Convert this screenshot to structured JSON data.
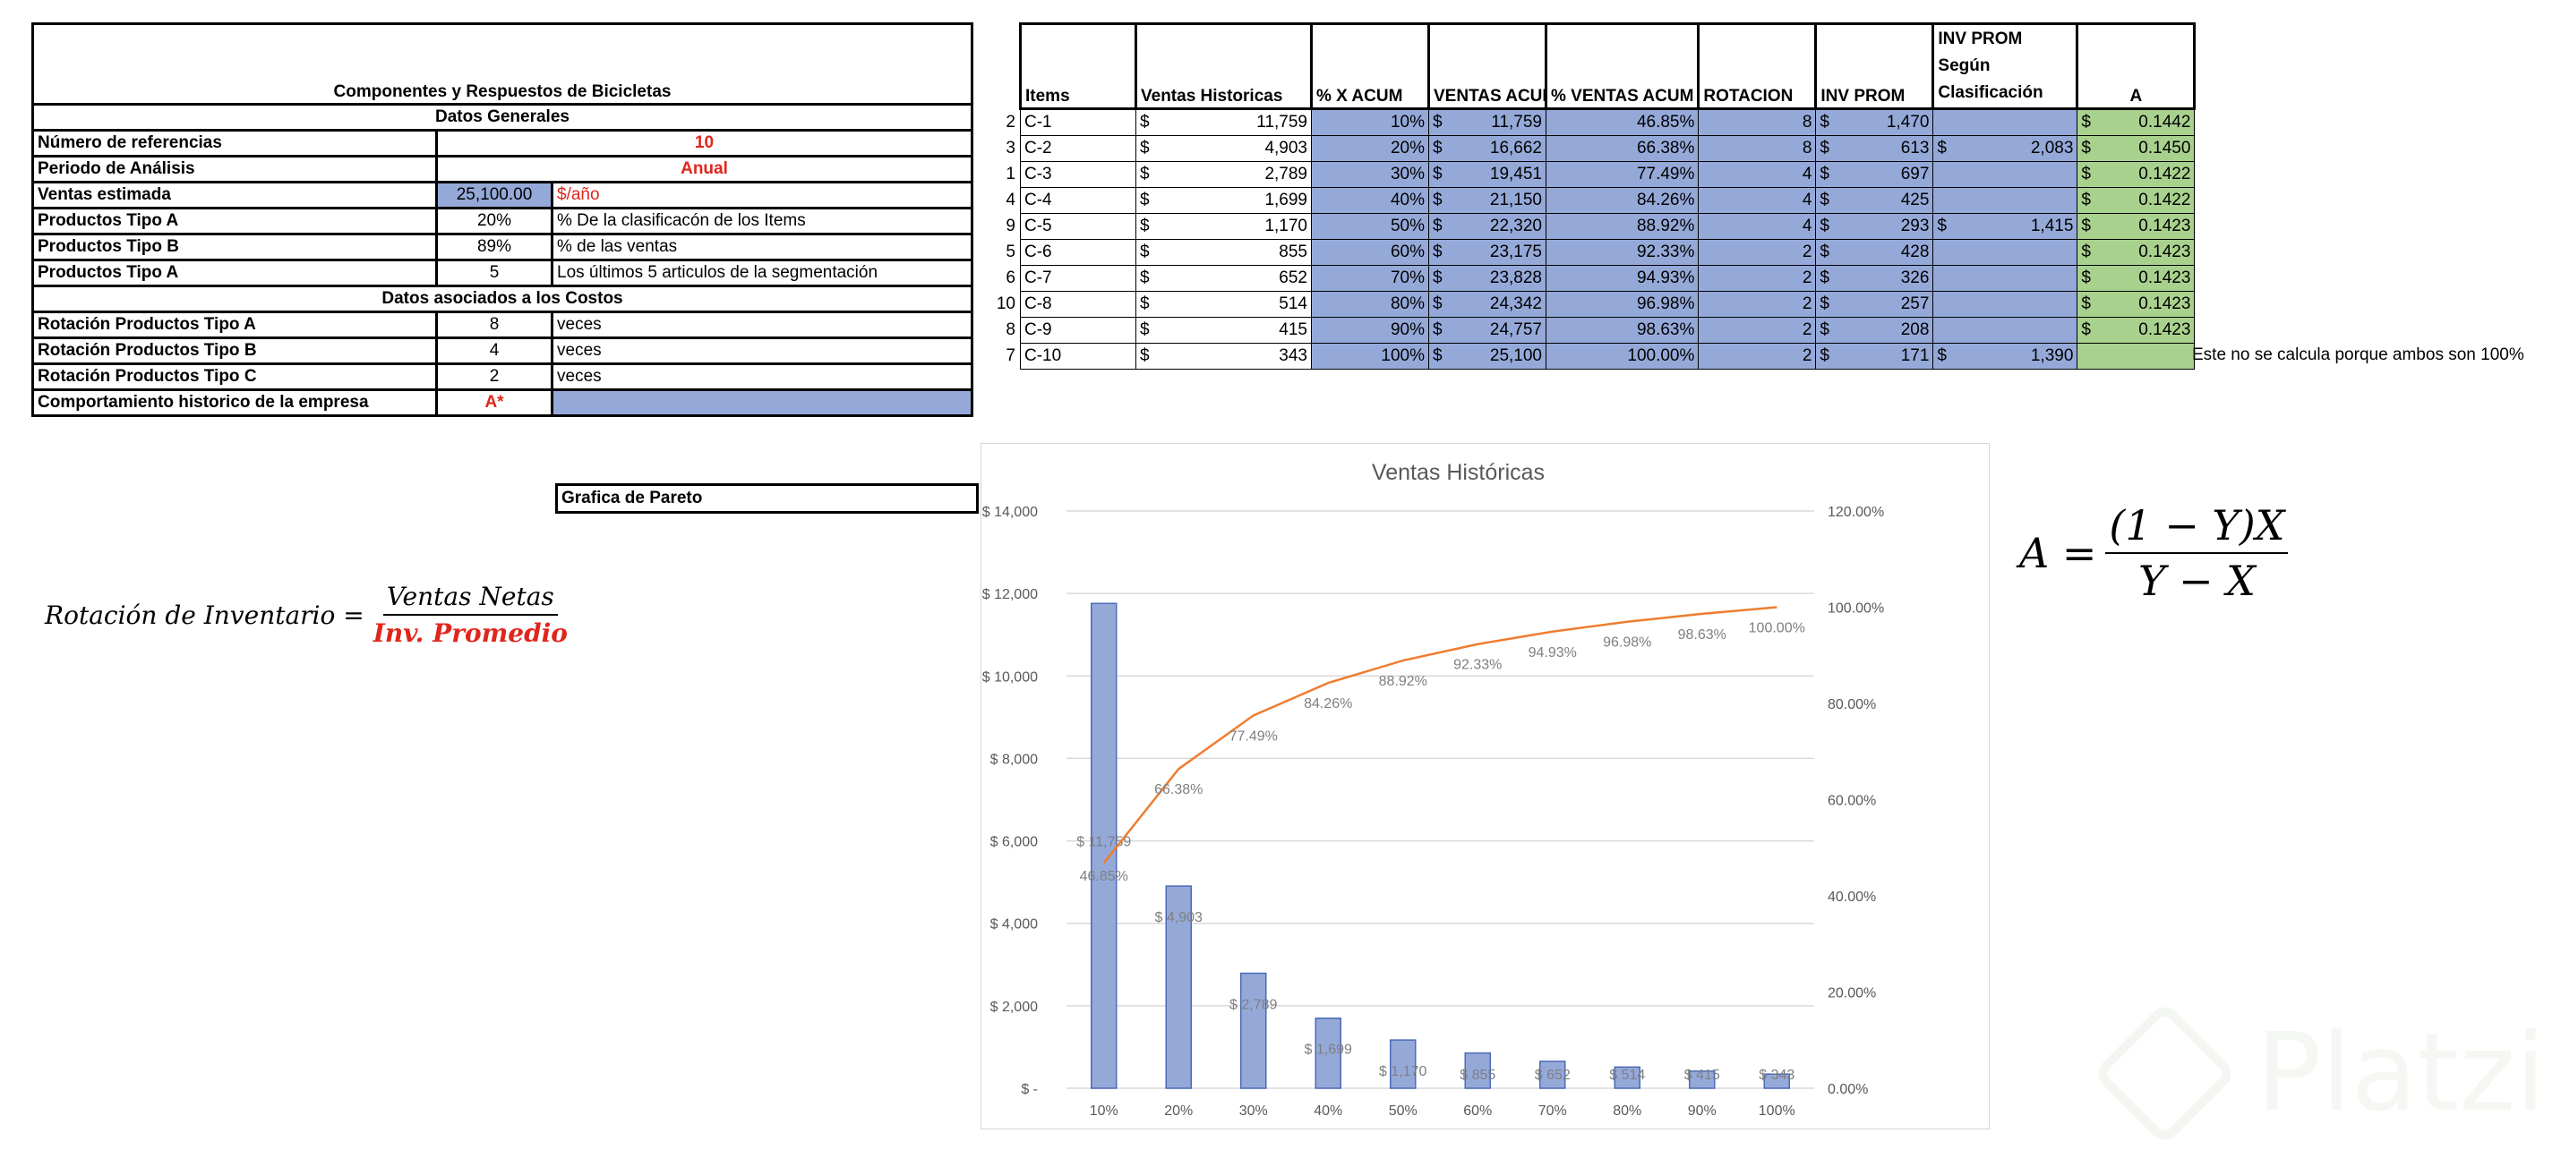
{
  "left": {
    "title": "Componentes y Respuestos de Bicicletas",
    "general_header": "Datos Generales",
    "rows": [
      {
        "label": "Número de referencias",
        "value": "10",
        "unit": ""
      },
      {
        "label": "Periodo de Análisis",
        "value": "Anual",
        "unit": ""
      },
      {
        "label": "Ventas estimada",
        "value": "25,100.00",
        "unit": "$/año"
      },
      {
        "label": "Productos Tipo A",
        "value": "20%",
        "unit": "% De la clasificacón de los Items"
      },
      {
        "label": "Productos Tipo B",
        "value": "89%",
        "unit": "% de las ventas"
      },
      {
        "label": "Productos Tipo A",
        "value": "5",
        "unit": "Los últimos 5 articulos de la segmentación"
      }
    ],
    "costs_header": "Datos asociados a los Costos",
    "cost_rows": [
      {
        "label": "Rotación Productos Tipo A",
        "value": "8",
        "unit": "veces"
      },
      {
        "label": "Rotación Productos Tipo B",
        "value": "4",
        "unit": "veces"
      },
      {
        "label": "Rotación Productos Tipo C",
        "value": "2",
        "unit": "veces"
      }
    ],
    "history": {
      "label": "Comportamiento historico de la empresa",
      "value": "A*"
    }
  },
  "table": {
    "headers": [
      "Items",
      "Ventas Historicas",
      "% X ACUM",
      "VENTAS ACUM",
      "% VENTAS ACUM",
      "ROTACION",
      "INV PROM",
      "INV PROM Según Clasificación",
      "A"
    ],
    "rows": [
      {
        "n": "2",
        "item": "C-1",
        "ventas": "11,759",
        "x": "10%",
        "acum": "11,759",
        "pct": "46.85%",
        "rot": "8",
        "inv": "1,470",
        "clas": "",
        "a": "0.1442"
      },
      {
        "n": "3",
        "item": "C-2",
        "ventas": "4,903",
        "x": "20%",
        "acum": "16,662",
        "pct": "66.38%",
        "rot": "8",
        "inv": "613",
        "clas": "2,083",
        "a": "0.1450"
      },
      {
        "n": "1",
        "item": "C-3",
        "ventas": "2,789",
        "x": "30%",
        "acum": "19,451",
        "pct": "77.49%",
        "rot": "4",
        "inv": "697",
        "clas": "",
        "a": "0.1422"
      },
      {
        "n": "4",
        "item": "C-4",
        "ventas": "1,699",
        "x": "40%",
        "acum": "21,150",
        "pct": "84.26%",
        "rot": "4",
        "inv": "425",
        "clas": "",
        "a": "0.1422"
      },
      {
        "n": "9",
        "item": "C-5",
        "ventas": "1,170",
        "x": "50%",
        "acum": "22,320",
        "pct": "88.92%",
        "rot": "4",
        "inv": "293",
        "clas": "1,415",
        "a": "0.1423"
      },
      {
        "n": "5",
        "item": "C-6",
        "ventas": "855",
        "x": "60%",
        "acum": "23,175",
        "pct": "92.33%",
        "rot": "2",
        "inv": "428",
        "clas": "",
        "a": "0.1423"
      },
      {
        "n": "6",
        "item": "C-7",
        "ventas": "652",
        "x": "70%",
        "acum": "23,828",
        "pct": "94.93%",
        "rot": "2",
        "inv": "326",
        "clas": "",
        "a": "0.1423"
      },
      {
        "n": "10",
        "item": "C-8",
        "ventas": "514",
        "x": "80%",
        "acum": "24,342",
        "pct": "96.98%",
        "rot": "2",
        "inv": "257",
        "clas": "",
        "a": "0.1423"
      },
      {
        "n": "8",
        "item": "C-9",
        "ventas": "415",
        "x": "90%",
        "acum": "24,757",
        "pct": "98.63%",
        "rot": "2",
        "inv": "208",
        "clas": "",
        "a": "0.1423"
      },
      {
        "n": "7",
        "item": "C-10",
        "ventas": "343",
        "x": "100%",
        "acum": "25,100",
        "pct": "100.00%",
        "rot": "2",
        "inv": "171",
        "clas": "1,390",
        "a": ""
      }
    ],
    "currency": "$",
    "note": "Este no se calcula porque ambos son 100%"
  },
  "pareto_label": "Grafica de Pareto",
  "formula_rotation": {
    "lhs": "Rotación de Inventario =",
    "num": "Ventas Netas",
    "den": "Inv. Promedio"
  },
  "formula_a": {
    "lhs": "A =",
    "num": "(1 − Y)X",
    "den": "Y − X"
  },
  "watermark": "Platzi",
  "colors": {
    "bar": "#95a9d9",
    "line": "#ed7d31",
    "red": "#e0261c",
    "green": "#a9d18e"
  },
  "chart_data": {
    "type": "bar",
    "title": "Ventas Históricas",
    "categories": [
      "10%",
      "20%",
      "30%",
      "40%",
      "50%",
      "60%",
      "70%",
      "80%",
      "90%",
      "100%"
    ],
    "series": [
      {
        "name": "Ventas Historicas",
        "type": "bar",
        "axis": "left",
        "values": [
          11759,
          4903,
          2789,
          1699,
          1170,
          855,
          652,
          514,
          415,
          343
        ],
        "labels": [
          "$ 11,759",
          "$ 4,903",
          "$ 2,789",
          "$ 1,699",
          "$ 1,170",
          "$ 855",
          "$ 652",
          "$ 514",
          "$ 415",
          "$ 343"
        ]
      },
      {
        "name": "% VENTAS ACUM",
        "type": "line",
        "axis": "right",
        "values": [
          46.85,
          66.38,
          77.49,
          84.26,
          88.92,
          92.33,
          94.93,
          96.98,
          98.63,
          100.0
        ],
        "labels": [
          "46.85%",
          "66.38%",
          "77.49%",
          "84.26%",
          "88.92%",
          "92.33%",
          "94.93%",
          "96.98%",
          "98.63%",
          "100.00%"
        ]
      }
    ],
    "ylim": [
      0,
      14000
    ],
    "yticks": [
      "$ -",
      "$ 2,000",
      "$ 4,000",
      "$ 6,000",
      "$ 8,000",
      "$ 10,000",
      "$ 12,000",
      "$ 14,000"
    ],
    "y2lim": [
      0,
      120
    ],
    "y2ticks": [
      "0.00%",
      "20.00%",
      "40.00%",
      "60.00%",
      "80.00%",
      "100.00%",
      "120.00%"
    ],
    "grid": true
  }
}
